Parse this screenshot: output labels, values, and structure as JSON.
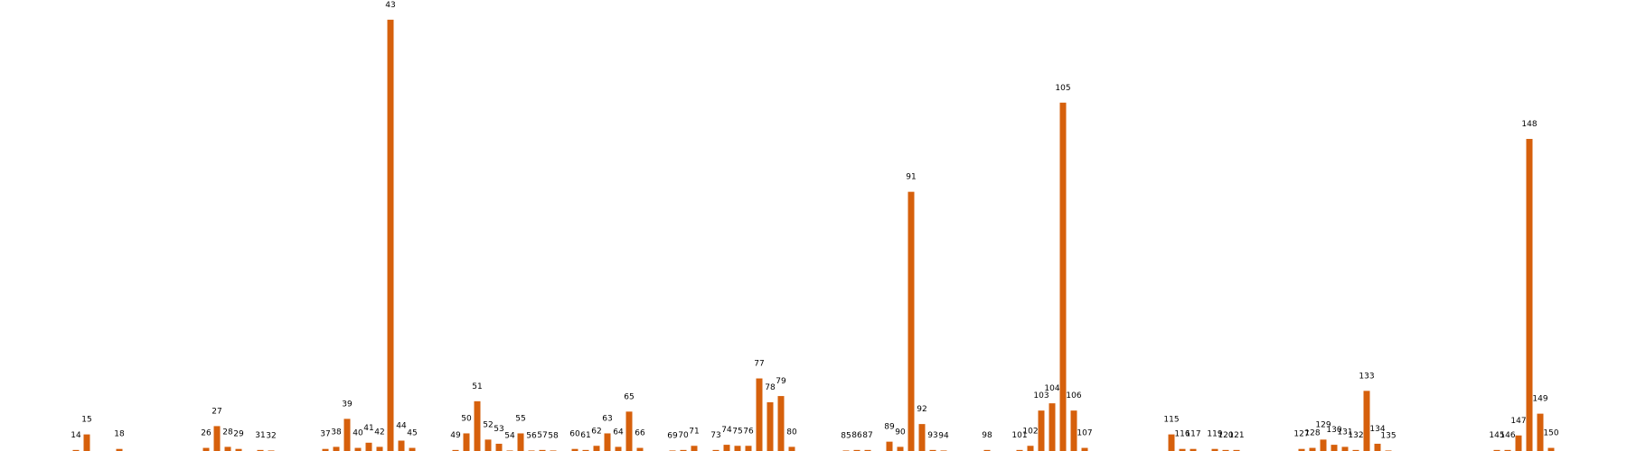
{
  "chart_data": {
    "type": "bar",
    "color": "#d6600c",
    "x": [
      14,
      15,
      18,
      26,
      27,
      28,
      29,
      31,
      32,
      37,
      38,
      39,
      40,
      41,
      42,
      43,
      44,
      45,
      49,
      50,
      51,
      52,
      53,
      54,
      55,
      56,
      57,
      58,
      60,
      61,
      62,
      63,
      64,
      65,
      66,
      69,
      70,
      71,
      73,
      74,
      75,
      76,
      77,
      78,
      79,
      80,
      85,
      86,
      87,
      89,
      90,
      91,
      92,
      93,
      94,
      98,
      101,
      102,
      103,
      104,
      105,
      106,
      107,
      115,
      116,
      117,
      119,
      120,
      121,
      127,
      128,
      129,
      130,
      131,
      132,
      133,
      134,
      135,
      145,
      146,
      147,
      148,
      149,
      150
    ],
    "values": [
      1,
      16,
      2,
      3,
      24,
      4,
      2,
      1,
      0.5,
      2,
      4,
      31,
      3,
      8,
      4,
      416,
      10,
      3,
      1,
      17,
      48,
      11,
      7,
      0.5,
      17,
      0.5,
      1,
      0.5,
      2,
      1,
      5,
      17,
      4,
      38,
      3,
      0.5,
      1,
      5,
      1,
      6,
      5,
      5,
      70,
      47,
      53,
      4,
      0.5,
      1,
      1,
      9,
      4,
      250,
      26,
      1,
      0.5,
      1,
      1,
      5,
      39,
      46,
      336,
      39,
      3,
      16,
      2,
      2,
      2,
      1,
      1,
      2,
      3,
      11,
      6,
      4,
      1,
      58,
      7,
      0.5,
      1,
      1,
      15,
      301,
      36,
      3
    ],
    "xlim": [
      7,
      157
    ],
    "ylim": [
      0,
      435
    ]
  }
}
